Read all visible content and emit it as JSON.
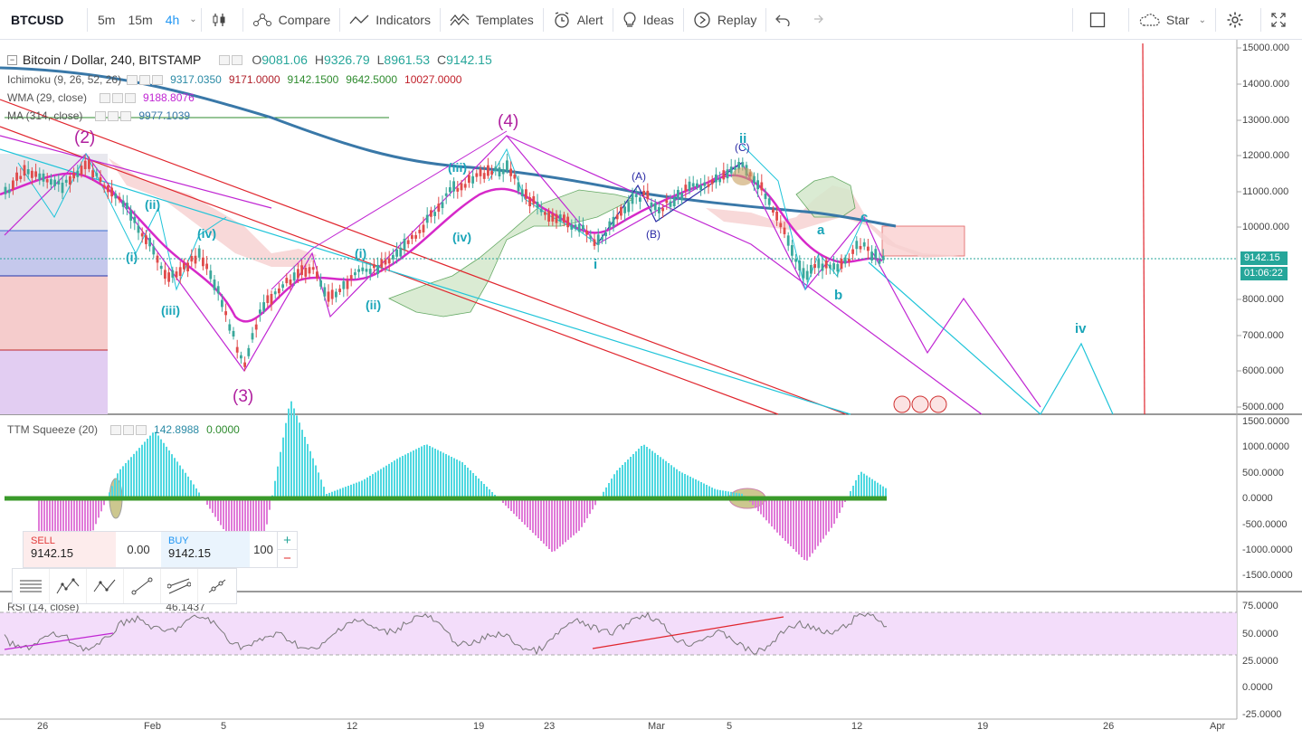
{
  "toolbar": {
    "symbol": "BTCUSD",
    "intervals": [
      "5m",
      "15m",
      "4h"
    ],
    "active_interval": "4h",
    "compare": "Compare",
    "indicators": "Indicators",
    "templates": "Templates",
    "alert": "Alert",
    "ideas": "Ideas",
    "replay": "Replay",
    "star": "Star"
  },
  "main_pane": {
    "title": "Bitcoin / Dollar, 240, BITSTAMP",
    "ohlc": {
      "o_label": "O",
      "o": "9081.06",
      "h_label": "H",
      "h": "9326.79",
      "l_label": "L",
      "l": "8961.53",
      "c_label": "C",
      "c": "9142.15"
    },
    "ichimoku": {
      "name": "Ichimoku (9, 26, 52, 26)",
      "v1": "9317.0350",
      "v2": "9171.0000",
      "v3": "9142.1500",
      "v4": "9642.5000",
      "v5": "10027.0000"
    },
    "wma": {
      "name": "WMA (29, close)",
      "value": "9188.8076"
    },
    "ma": {
      "name": "MA (314, close)",
      "value": "9977.1039"
    },
    "price_axis": [
      "15000.000",
      "14000.000",
      "13000.000",
      "12000.000",
      "11000.000",
      "10000.000",
      "9000.000",
      "8000.000",
      "7000.000",
      "6000.000",
      "5000.000"
    ],
    "last_price": "9142.15",
    "countdown": "01:06:22",
    "wave_labels": {
      "w2": "(2)",
      "w3": "(3)",
      "w4": "(4)",
      "ii_small": "(ii)",
      "i_small": "(i)",
      "iii_small": "(iii)",
      "iv_small": "(iv)",
      "ii_main": "ii",
      "i_main": "i",
      "iv_right": "iv",
      "a": "a",
      "b": "b",
      "c": "c",
      "iii2": "(iii)",
      "iv2": "(iv)",
      "i2": "(i)",
      "ii2": "(ii)",
      "A": "(A)",
      "B": "(B)",
      "C": "(C)"
    }
  },
  "ttm_pane": {
    "name": "TTM Squeeze (20)",
    "v1": "142.8988",
    "v2": "0.0000",
    "axis": [
      "1500.0000",
      "1000.0000",
      "500.0000",
      "0.0000",
      "-500.0000",
      "-1000.0000",
      "-1500.0000"
    ]
  },
  "rsi_pane": {
    "name": "RSI (14, close)",
    "value": "46.1437",
    "axis": [
      "75.0000",
      "50.0000",
      "25.0000",
      "0.0000",
      "-25.0000"
    ]
  },
  "date_axis": [
    "26",
    "Feb",
    "5",
    "12",
    "19",
    "23",
    "Mar",
    "5",
    "12",
    "19",
    "26",
    "Apr"
  ],
  "trade": {
    "sell_label": "SELL",
    "sell_price": "9142.15",
    "spread": "0.00",
    "buy_label": "BUY",
    "buy_price": "9142.15",
    "amount": "100",
    "plus": "+",
    "minus": "−"
  },
  "colors": {
    "accent": "#2196f3",
    "price_up": "#26a69a",
    "price_line": "#26a69a",
    "wave_magenta": "#c026d3",
    "wave_cyan": "#1fc4d9",
    "trend_red": "#e0252d",
    "ma_blue": "#3978a8"
  }
}
